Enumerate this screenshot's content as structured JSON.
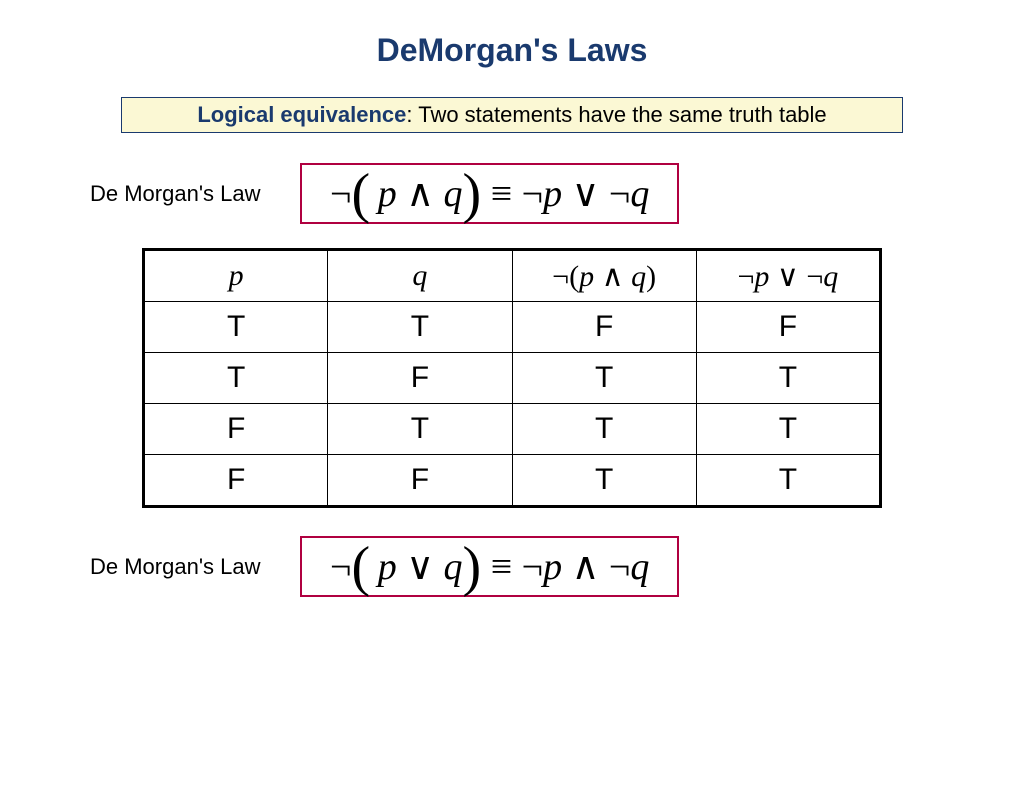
{
  "title": "DeMorgan's Laws",
  "definition": {
    "term": "Logical equivalence",
    "text": ": Two statements have the same truth table"
  },
  "law1": {
    "label": "De Morgan's Law",
    "lhs_op": "∧",
    "rhs_op": "∨"
  },
  "law2": {
    "label": "De Morgan's Law",
    "lhs_op": "∨",
    "rhs_op": "∧"
  },
  "table": {
    "headers": {
      "c1": "p",
      "c2": "q",
      "c3": "¬(p ∧ q)",
      "c4": "¬p ∨ ¬q"
    },
    "rows": [
      {
        "c1": "T",
        "c2": "T",
        "c3": "F",
        "c4": "F"
      },
      {
        "c1": "T",
        "c2": "F",
        "c3": "T",
        "c4": "T"
      },
      {
        "c1": "F",
        "c2": "T",
        "c3": "T",
        "c4": "T"
      },
      {
        "c1": "F",
        "c2": "F",
        "c3": "T",
        "c4": "T"
      }
    ]
  },
  "colors": {
    "title": "#1a3a6e",
    "defbox_bg": "#fbf8d4",
    "formula_border": "#b00040",
    "background": "#ffffff"
  }
}
